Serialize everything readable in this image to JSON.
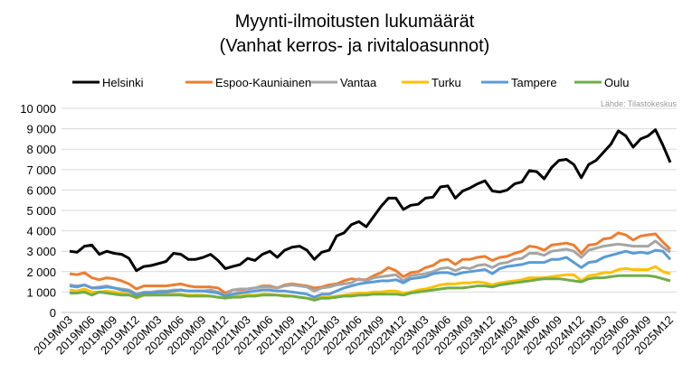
{
  "chart_data": {
    "type": "line",
    "title": [
      "Myynti-ilmoitusten lukumäärät",
      "(Vanhat kerros- ja rivitaloasunnot)"
    ],
    "source": "Lähde: Tilastokeskus",
    "x_start": "2019M03",
    "x_end": "2025M12",
    "frequency": "monthly",
    "x_tick_labels": [
      "2019M03",
      "2019M06",
      "2019M09",
      "2019M12",
      "2020M03",
      "2020M06",
      "2020M09",
      "2020M12",
      "2021M03",
      "2021M06",
      "2021M09",
      "2021M12",
      "2022M03",
      "2022M06",
      "2022M09",
      "2022M12",
      "2023M03",
      "2023M06",
      "2023M09",
      "2023M12",
      "2024M03",
      "2024M06",
      "2024M09",
      "2024M12",
      "2025M03",
      "2025M06",
      "2025M09",
      "2025M12"
    ],
    "y_tick_labels": [
      "0",
      "1 000",
      "2 000",
      "3 000",
      "4 000",
      "5 000",
      "6 000",
      "7 000",
      "8 000",
      "9 000",
      "10 000"
    ],
    "ylim": [
      0,
      10000
    ],
    "grid": true,
    "legend_position": "top",
    "series": [
      {
        "name": "Helsinki",
        "color": "#000000",
        "values": [
          3000,
          2950,
          3250,
          3300,
          2850,
          3000,
          2900,
          2850,
          2650,
          2050,
          2250,
          2300,
          2400,
          2500,
          2900,
          2850,
          2600,
          2600,
          2700,
          2850,
          2550,
          2150,
          2250,
          2350,
          2650,
          2550,
          2850,
          3000,
          2700,
          3050,
          3200,
          3250,
          3050,
          2600,
          2950,
          3050,
          3750,
          3900,
          4300,
          4450,
          4200,
          4700,
          5200,
          5600,
          5600,
          5050,
          5250,
          5300,
          5600,
          5650,
          6150,
          6200,
          5600,
          5950,
          6100,
          6300,
          6450,
          5950,
          5900,
          6000,
          6300,
          6400,
          6950,
          6900,
          6550,
          7100,
          7450,
          7500,
          7250,
          6600,
          7250,
          7450,
          7850,
          8250,
          8900,
          8650,
          8100,
          8500,
          8650,
          8950,
          8200,
          7350
        ]
      },
      {
        "name": "Espoo-Kauniainen",
        "color": "#ED7D31",
        "values": [
          1900,
          1850,
          1950,
          1700,
          1600,
          1700,
          1650,
          1550,
          1400,
          1150,
          1300,
          1300,
          1300,
          1300,
          1350,
          1400,
          1300,
          1250,
          1250,
          1250,
          1200,
          950,
          1100,
          1100,
          1150,
          1200,
          1300,
          1300,
          1200,
          1350,
          1400,
          1350,
          1300,
          1200,
          1250,
          1350,
          1400,
          1550,
          1650,
          1600,
          1600,
          1800,
          1950,
          2200,
          2050,
          1750,
          1950,
          2000,
          2200,
          2300,
          2550,
          2600,
          2350,
          2600,
          2600,
          2700,
          2750,
          2550,
          2700,
          2750,
          2900,
          3000,
          3250,
          3200,
          3050,
          3300,
          3350,
          3400,
          3300,
          2900,
          3300,
          3350,
          3600,
          3650,
          3900,
          3800,
          3550,
          3750,
          3800,
          3850,
          3450,
          3100
        ]
      },
      {
        "name": "Vantaa",
        "color": "#A5A5A5",
        "values": [
          1350,
          1300,
          1350,
          1200,
          1250,
          1300,
          1200,
          1150,
          1100,
          900,
          1000,
          1000,
          1050,
          1050,
          1100,
          1100,
          1050,
          1050,
          1050,
          1100,
          1000,
          850,
          1100,
          1150,
          1150,
          1200,
          1250,
          1250,
          1200,
          1300,
          1350,
          1300,
          1250,
          1050,
          1200,
          1250,
          1350,
          1400,
          1450,
          1650,
          1550,
          1700,
          1750,
          1800,
          1850,
          1550,
          1800,
          1850,
          1900,
          2000,
          2150,
          2200,
          2050,
          2200,
          2150,
          2300,
          2350,
          2200,
          2400,
          2450,
          2600,
          2650,
          2900,
          2900,
          2800,
          3000,
          3050,
          3100,
          3000,
          2700,
          3050,
          3150,
          3250,
          3300,
          3350,
          3300,
          3250,
          3250,
          3250,
          3500,
          3200,
          2950
        ]
      },
      {
        "name": "Turku",
        "color": "#FFC000",
        "values": [
          1100,
          1050,
          1150,
          1000,
          1000,
          1050,
          1000,
          950,
          900,
          700,
          850,
          850,
          900,
          900,
          900,
          900,
          850,
          850,
          850,
          800,
          750,
          700,
          800,
          800,
          850,
          850,
          900,
          900,
          850,
          850,
          800,
          750,
          700,
          650,
          750,
          750,
          800,
          850,
          900,
          950,
          950,
          1000,
          1000,
          1050,
          1050,
          950,
          1000,
          1100,
          1150,
          1250,
          1350,
          1400,
          1400,
          1450,
          1450,
          1500,
          1450,
          1350,
          1450,
          1500,
          1550,
          1600,
          1700,
          1700,
          1700,
          1750,
          1800,
          1850,
          1850,
          1550,
          1800,
          1850,
          1950,
          1950,
          2100,
          2150,
          2100,
          2100,
          2100,
          2250,
          2000,
          1900
        ]
      },
      {
        "name": "Tampere",
        "color": "#5B9BD5",
        "values": [
          1300,
          1250,
          1350,
          1200,
          1200,
          1250,
          1200,
          1100,
          1050,
          850,
          950,
          950,
          1000,
          1000,
          1050,
          1100,
          1050,
          1050,
          1050,
          1000,
          950,
          800,
          900,
          950,
          1000,
          1050,
          1100,
          1100,
          1050,
          1050,
          1000,
          950,
          900,
          750,
          900,
          900,
          1050,
          1200,
          1300,
          1400,
          1450,
          1500,
          1550,
          1550,
          1600,
          1450,
          1650,
          1700,
          1750,
          1900,
          1950,
          1950,
          1850,
          1950,
          2000,
          2050,
          2100,
          1900,
          2150,
          2250,
          2300,
          2350,
          2450,
          2450,
          2450,
          2600,
          2600,
          2700,
          2450,
          2200,
          2450,
          2500,
          2700,
          2800,
          2900,
          3000,
          2900,
          2950,
          2900,
          3050,
          3000,
          2600
        ]
      },
      {
        "name": "Oulu",
        "color": "#70AD47",
        "values": [
          950,
          950,
          1000,
          850,
          1000,
          950,
          900,
          850,
          850,
          750,
          850,
          850,
          850,
          850,
          850,
          850,
          800,
          800,
          800,
          800,
          750,
          700,
          750,
          750,
          800,
          800,
          850,
          850,
          850,
          800,
          800,
          750,
          700,
          600,
          700,
          700,
          750,
          800,
          800,
          850,
          850,
          900,
          900,
          900,
          900,
          850,
          950,
          1000,
          1050,
          1100,
          1150,
          1200,
          1200,
          1200,
          1250,
          1300,
          1300,
          1250,
          1350,
          1400,
          1450,
          1500,
          1550,
          1600,
          1650,
          1650,
          1650,
          1600,
          1550,
          1500,
          1650,
          1700,
          1700,
          1750,
          1800,
          1800,
          1800,
          1800,
          1800,
          1750,
          1650,
          1550
        ]
      }
    ]
  }
}
